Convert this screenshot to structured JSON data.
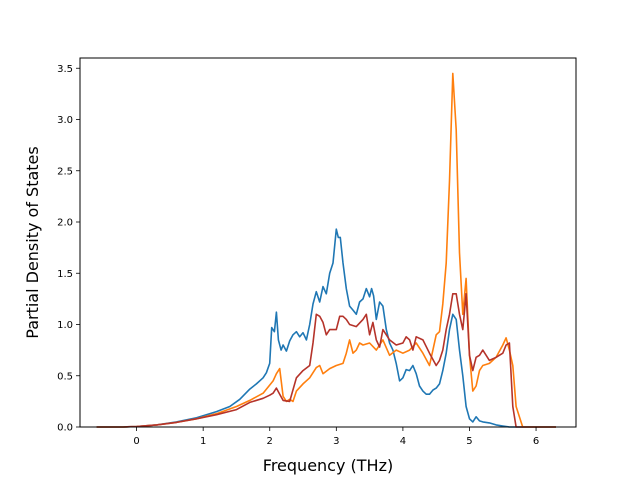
{
  "chart_data": {
    "type": "line",
    "title": "",
    "xlabel": "Frequency (THz)",
    "ylabel": "Partial Density of States",
    "xlim": [
      -0.85,
      6.6
    ],
    "ylim": [
      0.0,
      3.6
    ],
    "x_ticks": [
      0,
      1,
      2,
      3,
      4,
      5,
      6
    ],
    "y_ticks": [
      0.0,
      0.5,
      1.0,
      1.5,
      2.0,
      2.5,
      3.0,
      3.5
    ],
    "x_tick_labels": [
      "0",
      "1",
      "2",
      "3",
      "4",
      "5",
      "6"
    ],
    "y_tick_labels": [
      "0.0",
      "0.5",
      "1.0",
      "1.5",
      "2.0",
      "2.5",
      "3.0",
      "3.5"
    ],
    "grid": false,
    "legend": "none",
    "series": [
      {
        "color": "#1f77b4",
        "x": [
          -0.6,
          -0.2,
          0.0,
          0.3,
          0.6,
          0.9,
          1.2,
          1.4,
          1.55,
          1.7,
          1.8,
          1.9,
          1.95,
          2.0,
          2.03,
          2.07,
          2.1,
          2.13,
          2.17,
          2.2,
          2.25,
          2.3,
          2.35,
          2.4,
          2.45,
          2.5,
          2.55,
          2.6,
          2.65,
          2.7,
          2.75,
          2.8,
          2.85,
          2.9,
          2.95,
          3.0,
          3.03,
          3.06,
          3.1,
          3.15,
          3.2,
          3.25,
          3.3,
          3.35,
          3.4,
          3.45,
          3.5,
          3.53,
          3.56,
          3.6,
          3.65,
          3.7,
          3.75,
          3.8,
          3.85,
          3.9,
          3.95,
          4.0,
          4.05,
          4.1,
          4.15,
          4.2,
          4.25,
          4.3,
          4.35,
          4.4,
          4.45,
          4.5,
          4.55,
          4.6,
          4.65,
          4.7,
          4.75,
          4.8,
          4.85,
          4.9,
          4.95,
          5.0,
          5.05,
          5.1,
          5.15,
          5.2,
          5.3,
          5.4,
          5.5,
          5.6,
          5.7,
          5.8,
          6.3
        ],
        "y": [
          0.0,
          0.0,
          0.005,
          0.02,
          0.05,
          0.09,
          0.15,
          0.2,
          0.27,
          0.37,
          0.42,
          0.48,
          0.53,
          0.62,
          0.97,
          0.93,
          1.12,
          0.85,
          0.75,
          0.8,
          0.74,
          0.84,
          0.9,
          0.93,
          0.88,
          0.92,
          0.85,
          1.0,
          1.2,
          1.32,
          1.22,
          1.37,
          1.3,
          1.5,
          1.6,
          1.93,
          1.85,
          1.85,
          1.6,
          1.35,
          1.18,
          1.14,
          1.1,
          1.22,
          1.25,
          1.35,
          1.27,
          1.35,
          1.28,
          1.05,
          1.22,
          1.18,
          0.95,
          0.82,
          0.75,
          0.62,
          0.45,
          0.48,
          0.56,
          0.55,
          0.6,
          0.52,
          0.4,
          0.35,
          0.32,
          0.32,
          0.36,
          0.38,
          0.42,
          0.55,
          0.72,
          0.95,
          1.1,
          1.05,
          0.75,
          0.5,
          0.2,
          0.08,
          0.05,
          0.1,
          0.06,
          0.05,
          0.04,
          0.02,
          0.01,
          0.0,
          0.0,
          0.0,
          0.0
        ]
      },
      {
        "color": "#ff7f0e",
        "x": [
          -0.6,
          -0.2,
          0.0,
          0.3,
          0.6,
          0.9,
          1.2,
          1.5,
          1.7,
          1.9,
          2.05,
          2.1,
          2.15,
          2.2,
          2.25,
          2.3,
          2.35,
          2.4,
          2.5,
          2.6,
          2.7,
          2.75,
          2.8,
          2.9,
          3.0,
          3.1,
          3.15,
          3.2,
          3.25,
          3.3,
          3.35,
          3.4,
          3.5,
          3.6,
          3.7,
          3.8,
          3.9,
          4.0,
          4.1,
          4.2,
          4.3,
          4.4,
          4.45,
          4.5,
          4.55,
          4.6,
          4.65,
          4.7,
          4.75,
          4.8,
          4.85,
          4.9,
          4.95,
          5.0,
          5.05,
          5.1,
          5.15,
          5.2,
          5.3,
          5.4,
          5.5,
          5.55,
          5.6,
          5.65,
          5.7,
          5.8,
          6.3
        ],
        "y": [
          0.0,
          0.0,
          0.005,
          0.02,
          0.045,
          0.08,
          0.13,
          0.2,
          0.26,
          0.33,
          0.45,
          0.52,
          0.57,
          0.3,
          0.25,
          0.27,
          0.25,
          0.35,
          0.42,
          0.48,
          0.58,
          0.6,
          0.52,
          0.57,
          0.6,
          0.62,
          0.72,
          0.85,
          0.72,
          0.75,
          0.82,
          0.8,
          0.82,
          0.75,
          0.85,
          0.7,
          0.75,
          0.72,
          0.75,
          0.82,
          0.72,
          0.6,
          0.75,
          0.9,
          0.93,
          1.2,
          1.6,
          2.4,
          3.45,
          2.9,
          1.7,
          1.1,
          1.45,
          0.7,
          0.35,
          0.4,
          0.55,
          0.6,
          0.62,
          0.68,
          0.8,
          0.87,
          0.75,
          0.6,
          0.2,
          0.0,
          0.0
        ]
      },
      {
        "color": "#b5332a",
        "x": [
          -0.6,
          -0.2,
          0.0,
          0.3,
          0.6,
          0.9,
          1.2,
          1.5,
          1.7,
          1.9,
          2.0,
          2.05,
          2.1,
          2.15,
          2.2,
          2.3,
          2.4,
          2.5,
          2.6,
          2.65,
          2.7,
          2.75,
          2.8,
          2.85,
          2.9,
          3.0,
          3.05,
          3.1,
          3.15,
          3.2,
          3.3,
          3.4,
          3.45,
          3.5,
          3.55,
          3.6,
          3.65,
          3.7,
          3.75,
          3.8,
          3.9,
          4.0,
          4.05,
          4.1,
          4.15,
          4.2,
          4.3,
          4.4,
          4.5,
          4.55,
          4.6,
          4.65,
          4.7,
          4.75,
          4.8,
          4.85,
          4.9,
          4.95,
          5.0,
          5.05,
          5.1,
          5.15,
          5.2,
          5.3,
          5.4,
          5.5,
          5.55,
          5.6,
          5.65,
          5.7,
          5.8,
          6.3
        ],
        "y": [
          0.0,
          0.0,
          0.005,
          0.02,
          0.045,
          0.08,
          0.12,
          0.17,
          0.24,
          0.28,
          0.31,
          0.33,
          0.38,
          0.32,
          0.26,
          0.25,
          0.48,
          0.55,
          0.6,
          0.82,
          1.1,
          1.08,
          1.02,
          0.9,
          0.95,
          0.95,
          1.08,
          1.08,
          1.05,
          1.0,
          0.98,
          1.05,
          1.1,
          0.9,
          1.02,
          0.85,
          0.78,
          0.95,
          0.9,
          0.85,
          0.8,
          0.82,
          0.88,
          0.85,
          0.75,
          0.88,
          0.85,
          0.72,
          0.6,
          0.65,
          0.75,
          0.95,
          1.1,
          1.3,
          1.3,
          1.1,
          0.95,
          1.3,
          0.7,
          0.55,
          0.68,
          0.7,
          0.75,
          0.65,
          0.68,
          0.72,
          0.8,
          0.82,
          0.2,
          0.0,
          0.0,
          0.0
        ]
      }
    ]
  }
}
